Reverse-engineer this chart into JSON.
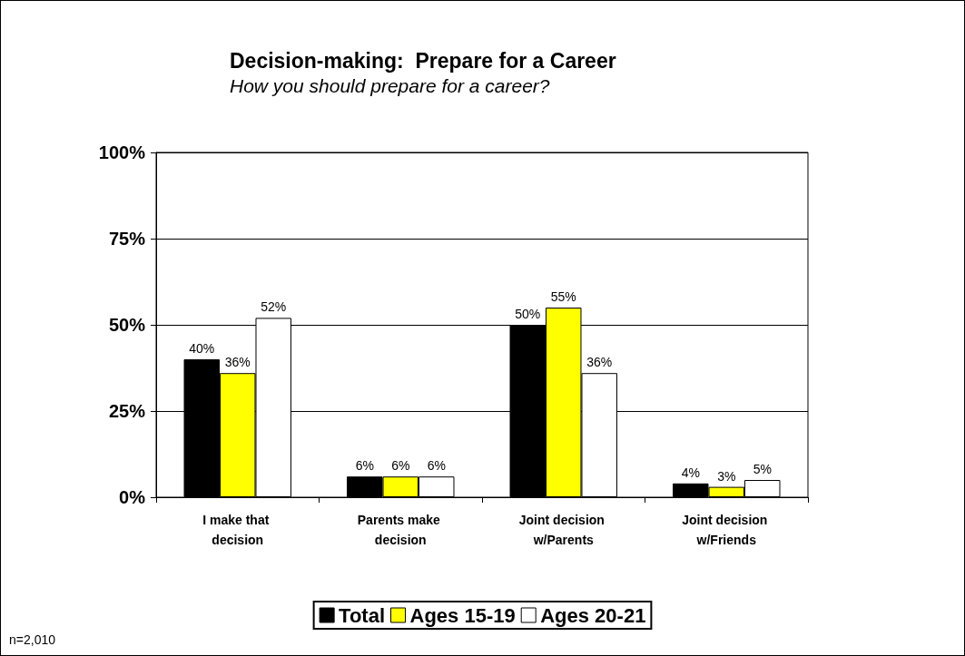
{
  "chart_data": {
    "type": "bar",
    "title": "Decision-making:  Prepare for a Career",
    "subtitle": "How you should prepare for a career?",
    "categories": [
      "I make that decision",
      "Parents make decision",
      "Joint decision w/Parents",
      "Joint decision w/Friends"
    ],
    "series": [
      {
        "name": "Total",
        "color": "#000000",
        "values": [
          40,
          6,
          50,
          4
        ],
        "value_labels": [
          "40%",
          "6%",
          "50%",
          "4%"
        ]
      },
      {
        "name": "Ages 15-19",
        "color": "#ffff00",
        "values": [
          36,
          6,
          55,
          3
        ],
        "value_labels": [
          "36%",
          "6%",
          "55%",
          "3%"
        ]
      },
      {
        "name": "Ages 20-21",
        "color": "#ffffff",
        "values": [
          52,
          6,
          36,
          5
        ],
        "value_labels": [
          "52%",
          "6%",
          "36%",
          "5%"
        ]
      }
    ],
    "ylim": [
      0,
      100
    ],
    "yticks": [
      {
        "value": 0,
        "label": "0%"
      },
      {
        "value": 25,
        "label": "25%"
      },
      {
        "value": 50,
        "label": "50%"
      },
      {
        "value": 75,
        "label": "75%"
      },
      {
        "value": 100,
        "label": "100%"
      }
    ],
    "grid": "y",
    "legend": "bottom",
    "annotations": [
      "n=2,010"
    ]
  }
}
